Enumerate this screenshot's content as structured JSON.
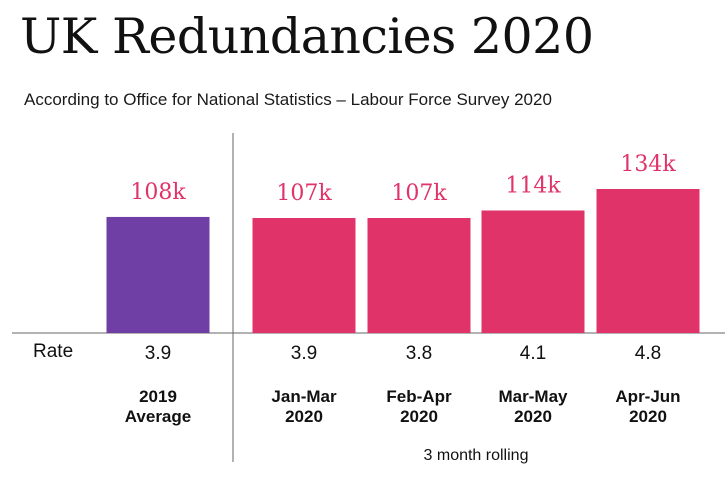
{
  "title": "UK Redundancies 2020",
  "subtitle": "According to Office for National Statistics – Labour Force Survey 2020",
  "rate_label": "Rate",
  "rolling_note": "3 month rolling",
  "colors": {
    "average": "#6f3fa6",
    "monthly": "#e0336a",
    "value_text": "#e0336a",
    "axis": "#666666"
  },
  "chart_data": {
    "type": "bar",
    "categories": [
      [
        "2019",
        "Average"
      ],
      [
        "Jan-Mar",
        "2020"
      ],
      [
        "Feb-Apr",
        "2020"
      ],
      [
        "Mar-May",
        "2020"
      ],
      [
        "Apr-Jun",
        "2020"
      ]
    ],
    "values": [
      108,
      107,
      107,
      114,
      134
    ],
    "value_labels": [
      "108k",
      "107k",
      "107k",
      "114k",
      "134k"
    ],
    "rates": [
      "3.9",
      "3.9",
      "3.8",
      "4.1",
      "4.8"
    ],
    "title": "UK Redundancies 2020",
    "subtitle": "According to Office for National Statistics – Labour Force Survey 2020",
    "ylim": [
      0,
      134
    ]
  }
}
